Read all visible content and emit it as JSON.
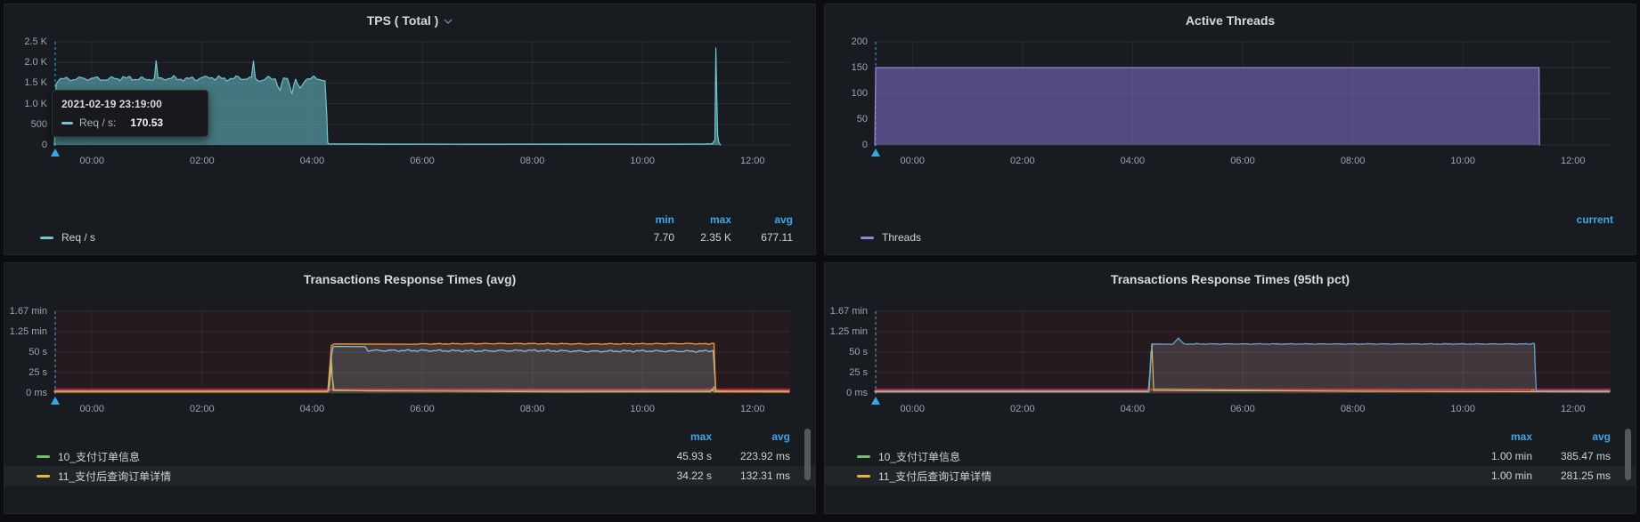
{
  "colors": {
    "accent_blue": "#3fa7e8",
    "teal": "#70c6d2",
    "purple": "#9688d4",
    "green": "#73BF69",
    "yellow": "#EAB839",
    "orange": "#FF9830",
    "cyan": "#75bec9",
    "blue": "#67a3d6",
    "threshold_red": "#c4162a",
    "annotation": "#36a9e1"
  },
  "tooltip": {
    "time": "2021-02-19 23:19:00",
    "series": "Req / s:",
    "value": "170.53"
  },
  "chart_data": [
    {
      "id": "tps",
      "type": "area",
      "title": "TPS ( Total )",
      "xlim": [
        -41,
        761
      ],
      "ylim": [
        0,
        2500
      ],
      "x_ticks": [
        {
          "t": 0,
          "label": "00:00"
        },
        {
          "t": 120,
          "label": "02:00"
        },
        {
          "t": 240,
          "label": "04:00"
        },
        {
          "t": 360,
          "label": "06:00"
        },
        {
          "t": 480,
          "label": "08:00"
        },
        {
          "t": 600,
          "label": "10:00"
        },
        {
          "t": 720,
          "label": "12:00"
        }
      ],
      "y_ticks": [
        {
          "v": 0,
          "label": "0"
        },
        {
          "v": 500,
          "label": "500"
        },
        {
          "v": 1000,
          "label": "1.0 K"
        },
        {
          "v": 1500,
          "label": "1.5 K"
        },
        {
          "v": 2000,
          "label": "2.0 K"
        },
        {
          "v": 2500,
          "label": "2.5 K"
        }
      ],
      "annotation_t": -40,
      "legend": {
        "headers": [
          "min",
          "max",
          "avg"
        ],
        "rows": [
          {
            "label": "Req / s",
            "values": [
              "7.70",
              "2.35 K",
              "677.11"
            ]
          }
        ]
      },
      "series": [
        {
          "name": "Req / s",
          "color": "#70c6d2",
          "fill": "rgba(96,175,187,0.62)",
          "width": 1.2,
          "noise": {
            "amp": 70,
            "from": -36,
            "to": 253
          },
          "points": [
            [
              -41,
              0
            ],
            [
              -40,
              900
            ],
            [
              -39,
              1480
            ],
            [
              -36,
              1590
            ],
            [
              -20,
              1600
            ],
            [
              0,
              1615
            ],
            [
              15,
              1585
            ],
            [
              30,
              1625
            ],
            [
              45,
              1610
            ],
            [
              60,
              1590
            ],
            [
              68,
              1615
            ],
            [
              70,
              2005
            ],
            [
              72,
              1600
            ],
            [
              85,
              1625
            ],
            [
              100,
              1590
            ],
            [
              115,
              1615
            ],
            [
              130,
              1635
            ],
            [
              145,
              1600
            ],
            [
              160,
              1620
            ],
            [
              174,
              1610
            ],
            [
              176,
              2015
            ],
            [
              178,
              1605
            ],
            [
              186,
              1565
            ],
            [
              194,
              1625
            ],
            [
              200,
              1610
            ],
            [
              205,
              1315
            ],
            [
              209,
              1590
            ],
            [
              213,
              1620
            ],
            [
              218,
              1290
            ],
            [
              222,
              1570
            ],
            [
              227,
              1340
            ],
            [
              232,
              1595
            ],
            [
              238,
              1620
            ],
            [
              244,
              1605
            ],
            [
              250,
              1590
            ],
            [
              254,
              1555
            ],
            [
              256,
              700
            ],
            [
              257,
              60
            ],
            [
              258,
              25
            ],
            [
              320,
              22
            ],
            [
              420,
              20
            ],
            [
              520,
              22
            ],
            [
              620,
              20
            ],
            [
              668,
              24
            ],
            [
              676,
              30
            ],
            [
              679,
              120
            ],
            [
              680,
              2350
            ],
            [
              681,
              1200
            ],
            [
              682,
              250
            ],
            [
              683,
              80
            ],
            [
              684,
              30
            ],
            [
              685,
              0
            ]
          ]
        }
      ]
    },
    {
      "id": "threads",
      "type": "area",
      "title": "Active Threads",
      "xlim": [
        -41,
        761
      ],
      "ylim": [
        0,
        200
      ],
      "x_ticks": [
        {
          "t": 0,
          "label": "00:00"
        },
        {
          "t": 120,
          "label": "02:00"
        },
        {
          "t": 240,
          "label": "04:00"
        },
        {
          "t": 360,
          "label": "06:00"
        },
        {
          "t": 480,
          "label": "08:00"
        },
        {
          "t": 600,
          "label": "10:00"
        },
        {
          "t": 720,
          "label": "12:00"
        }
      ],
      "y_ticks": [
        {
          "v": 0,
          "label": "0"
        },
        {
          "v": 50,
          "label": "50"
        },
        {
          "v": 100,
          "label": "100"
        },
        {
          "v": 150,
          "label": "150"
        },
        {
          "v": 200,
          "label": "200"
        }
      ],
      "annotation_t": -40,
      "legend": {
        "headers": [
          "current"
        ],
        "rows": [
          {
            "label": "Threads",
            "values": []
          }
        ]
      },
      "series": [
        {
          "name": "Threads",
          "color": "#9688d4",
          "fill": "rgba(130,112,205,0.55)",
          "width": 1.2,
          "points": [
            [
              -41,
              0
            ],
            [
              -40.5,
              75
            ],
            [
              -40,
              150
            ],
            [
              682,
              150
            ],
            [
              683,
              150
            ],
            [
              683.5,
              0
            ]
          ]
        }
      ]
    },
    {
      "id": "avg",
      "type": "line",
      "title": "Transactions Response Times (avg)",
      "xlim": [
        -41,
        761
      ],
      "ylim": [
        0,
        100
      ],
      "x_ticks": [
        {
          "t": 0,
          "label": "00:00"
        },
        {
          "t": 120,
          "label": "02:00"
        },
        {
          "t": 240,
          "label": "04:00"
        },
        {
          "t": 360,
          "label": "06:00"
        },
        {
          "t": 480,
          "label": "08:00"
        },
        {
          "t": 600,
          "label": "10:00"
        },
        {
          "t": 720,
          "label": "12:00"
        }
      ],
      "y_ticks": [
        {
          "v": 0,
          "label": "0 ms"
        },
        {
          "v": 25,
          "label": "25 s"
        },
        {
          "v": 50,
          "label": "50 s"
        },
        {
          "v": 75,
          "label": "1.25 min"
        },
        {
          "v": 100,
          "label": "1.67 min"
        }
      ],
      "annotation_t": -40,
      "plot_tint": "rgba(196,22,42,0.08)",
      "threshold_band_sec": [
        2.5,
        6
      ],
      "threshold_line_sec": 4,
      "legend": {
        "headers": [
          "max",
          "avg"
        ],
        "rows": [
          {
            "label": "10_支付订单信息",
            "values": [
              "45.93 s",
              "223.92 ms"
            ]
          },
          {
            "label": "11_支付后查询订单详情",
            "values": [
              "34.22 s",
              "132.31 ms"
            ]
          }
        ]
      },
      "series": [
        {
          "name": "10_支付订单信息",
          "color": "#73BF69",
          "width": 1,
          "points": [
            [
              -41,
              2
            ],
            [
              256,
              2
            ],
            [
              259,
              8
            ],
            [
              261,
              46
            ],
            [
              262,
              20
            ],
            [
              264,
              4
            ],
            [
              300,
              2.5
            ],
            [
              672,
              2.5
            ],
            [
              676,
              3
            ],
            [
              678,
              8
            ],
            [
              679,
              3
            ],
            [
              700,
              2
            ],
            [
              760,
              2
            ]
          ]
        },
        {
          "name": "11_支付后查询订单详情",
          "color": "#EAB839",
          "width": 1,
          "points": [
            [
              -41,
              1.3
            ],
            [
              257,
              1.3
            ],
            [
              260,
              20
            ],
            [
              261,
              34
            ],
            [
              263,
              3
            ],
            [
              500,
              1.4
            ],
            [
              674,
              1.5
            ],
            [
              676,
              5
            ],
            [
              678,
              1.5
            ],
            [
              760,
              1.3
            ]
          ]
        },
        {
          "color": "#75bec9",
          "width": 1.3,
          "fill": "rgba(117,190,201,0.06)",
          "noise": {
            "amp": 1.4,
            "from": 264,
            "to": 676
          },
          "points": [
            [
              -41,
              2.4
            ],
            [
              258,
              2.4
            ],
            [
              261,
              45
            ],
            [
              263,
              57
            ],
            [
              298,
              57
            ],
            [
              301,
              52
            ],
            [
              360,
              52
            ],
            [
              420,
              51.5
            ],
            [
              480,
              52
            ],
            [
              540,
              51
            ],
            [
              600,
              51.5
            ],
            [
              660,
              51
            ],
            [
              672,
              51.5
            ],
            [
              677,
              52
            ],
            [
              679,
              20
            ],
            [
              680,
              2.4
            ],
            [
              760,
              2.4
            ]
          ]
        },
        {
          "color": "#FF9830",
          "width": 1.3,
          "fill": "rgba(215,210,203,0.16)",
          "noise": {
            "amp": 0.7,
            "from": 266,
            "to": 676
          },
          "points": [
            [
              -41,
              1.6
            ],
            [
              257,
              1.6
            ],
            [
              259,
              30
            ],
            [
              261,
              58
            ],
            [
              264,
              60
            ],
            [
              350,
              60
            ],
            [
              450,
              60.5
            ],
            [
              550,
              60
            ],
            [
              650,
              60.5
            ],
            [
              672,
              60
            ],
            [
              676,
              61
            ],
            [
              678,
              60.5
            ],
            [
              679,
              30
            ],
            [
              680,
              2
            ],
            [
              760,
              1.6
            ]
          ]
        }
      ]
    },
    {
      "id": "pct95",
      "type": "line",
      "title": "Transactions Response Times (95th pct)",
      "xlim": [
        -41,
        761
      ],
      "ylim": [
        0,
        100
      ],
      "x_ticks": [
        {
          "t": 0,
          "label": "00:00"
        },
        {
          "t": 120,
          "label": "02:00"
        },
        {
          "t": 240,
          "label": "04:00"
        },
        {
          "t": 360,
          "label": "06:00"
        },
        {
          "t": 480,
          "label": "08:00"
        },
        {
          "t": 600,
          "label": "10:00"
        },
        {
          "t": 720,
          "label": "12:00"
        }
      ],
      "y_ticks": [
        {
          "v": 0,
          "label": "0 ms"
        },
        {
          "v": 25,
          "label": "25 s"
        },
        {
          "v": 50,
          "label": "50 s"
        },
        {
          "v": 75,
          "label": "1.25 min"
        },
        {
          "v": 100,
          "label": "1.67 min"
        }
      ],
      "annotation_t": -40,
      "plot_tint": "rgba(196,22,42,0.08)",
      "threshold_band_sec": [
        2.5,
        6
      ],
      "threshold_line_sec": 4,
      "legend": {
        "headers": [
          "max",
          "avg"
        ],
        "rows": [
          {
            "label": "10_支付订单信息",
            "values": [
              "1.00 min",
              "385.47 ms"
            ]
          },
          {
            "label": "11_支付后查询订单详情",
            "values": [
              "1.00 min",
              "281.25 ms"
            ]
          }
        ]
      },
      "series": [
        {
          "name": "10_支付订单信息",
          "color": "#73BF69",
          "width": 1,
          "points": [
            [
              -41,
              2
            ],
            [
              257,
              2
            ],
            [
              259,
              30
            ],
            [
              261,
              60
            ],
            [
              263,
              5
            ],
            [
              480,
              2
            ],
            [
              674,
              2
            ],
            [
              676,
              4
            ],
            [
              678,
              2
            ],
            [
              760,
              2
            ]
          ]
        },
        {
          "name": "11_支付后查询订单详情",
          "color": "#EAB839",
          "width": 1,
          "points": [
            [
              -41,
              1.3
            ],
            [
              258,
              1.3
            ],
            [
              260,
              40
            ],
            [
              261,
              60
            ],
            [
              263,
              3
            ],
            [
              760,
              1.3
            ]
          ]
        },
        {
          "color": "#67a3d6",
          "width": 1.3,
          "fill": "rgba(215,210,203,0.16)",
          "noise": {
            "amp": 0.5,
            "from": 265,
            "to": 674
          },
          "points": [
            [
              -41,
              2.5
            ],
            [
              258,
              2.5
            ],
            [
              260,
              50
            ],
            [
              262,
              60
            ],
            [
              284,
              60
            ],
            [
              287,
              64
            ],
            [
              290,
              67
            ],
            [
              293,
              63
            ],
            [
              296,
              60
            ],
            [
              400,
              60
            ],
            [
              500,
              60
            ],
            [
              600,
              60
            ],
            [
              674,
              60
            ],
            [
              677,
              61
            ],
            [
              678,
              60
            ],
            [
              679,
              25
            ],
            [
              680,
              2.5
            ],
            [
              760,
              2.5
            ]
          ]
        }
      ]
    }
  ]
}
